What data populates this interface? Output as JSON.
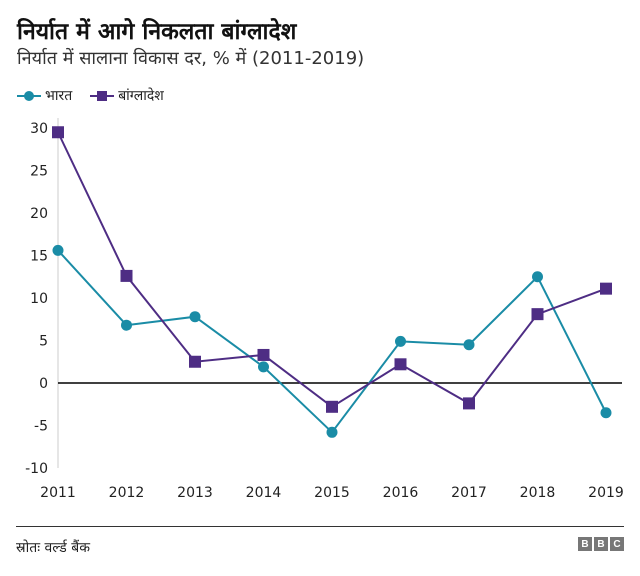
{
  "title": "निर्यात में आगे निकलता बांग्लादेश",
  "subtitle": "निर्यात में सालाना विकास दर, % में (2011-2019)",
  "source": "स्रोतः वर्ल्ड बैंक",
  "logo": [
    "B",
    "B",
    "C"
  ],
  "colors": {
    "india": "#1a8ca6",
    "bangladesh": "#4e2d84"
  },
  "chart_data": {
    "type": "line",
    "title": "निर्यात में आगे निकलता बांग्लादेश",
    "xlabel": "",
    "ylabel": "",
    "categories": [
      "2011",
      "2012",
      "2013",
      "2014",
      "2015",
      "2016",
      "2017",
      "2018",
      "2019"
    ],
    "ylim": [
      -10,
      30
    ],
    "yticks": [
      "30",
      "25",
      "20",
      "15",
      "10",
      "5",
      "0",
      "-5",
      "-10"
    ],
    "legend_position": "top-left",
    "series": [
      {
        "name": "भारत",
        "marker": "circle",
        "values": [
          15.6,
          6.8,
          7.8,
          1.9,
          -5.8,
          4.9,
          4.5,
          12.5,
          -3.5
        ]
      },
      {
        "name": "बांग्लादेश",
        "marker": "square",
        "values": [
          29.5,
          12.6,
          2.5,
          3.3,
          -2.8,
          2.2,
          -2.4,
          8.1,
          11.1
        ]
      }
    ]
  }
}
